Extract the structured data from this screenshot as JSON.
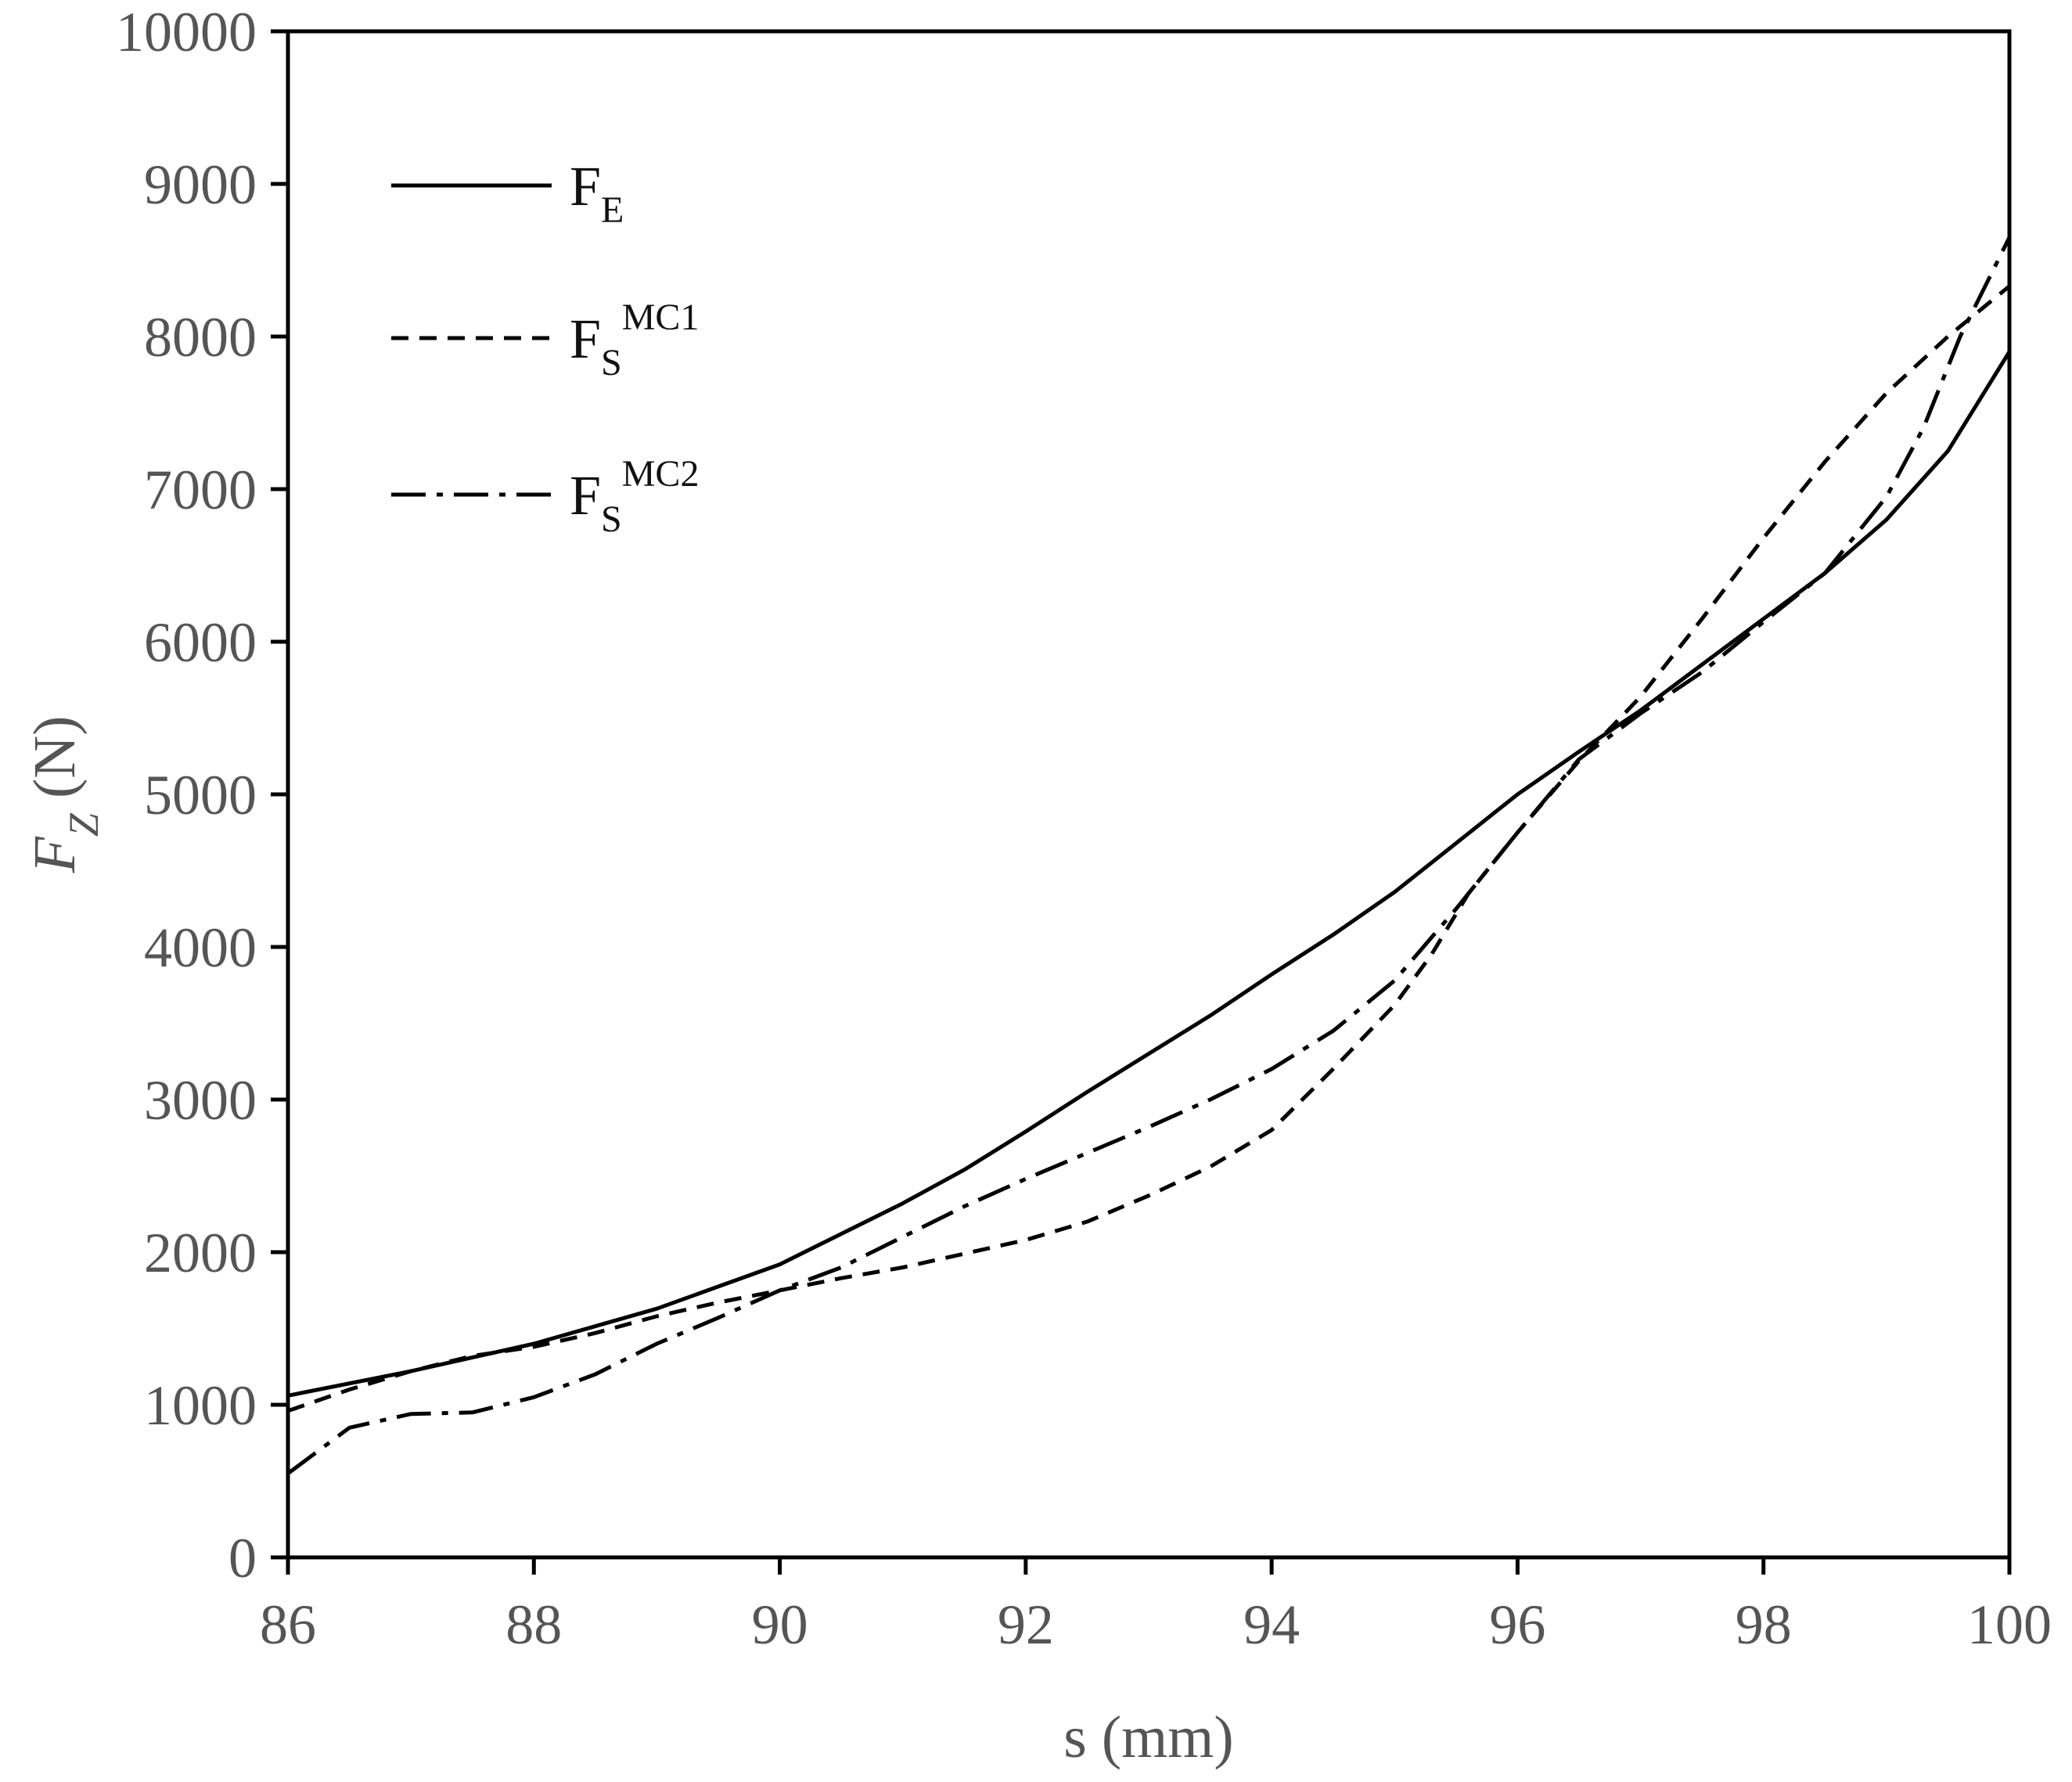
{
  "chart_data": {
    "type": "line",
    "xlabel": "s (mm)",
    "ylabel_main": "F",
    "ylabel_sub": "Z",
    "ylabel_unit": " (N)",
    "xlim": [
      86,
      100
    ],
    "ylim": [
      0,
      10000
    ],
    "x_ticks": [
      "86",
      "88",
      "90",
      "92",
      "94",
      "96",
      "98",
      "100"
    ],
    "y_ticks": [
      "0",
      "1000",
      "2000",
      "3000",
      "4000",
      "5000",
      "6000",
      "7000",
      "8000",
      "9000",
      "10000"
    ],
    "grid": false,
    "legend_position": "top-left",
    "series": [
      {
        "name": "F",
        "name_sub": "E",
        "name_sup": "",
        "style": "solid",
        "color": "#000000",
        "x": [
          86,
          87,
          88,
          89,
          90,
          90.5,
          91,
          91.5,
          92,
          92.5,
          93,
          93.5,
          94,
          94.5,
          95,
          95.5,
          96,
          96.5,
          97,
          97.5,
          98,
          98.5,
          99,
          99.5,
          100
        ],
        "y": [
          1060,
          1220,
          1400,
          1630,
          1920,
          2120,
          2320,
          2540,
          2790,
          3050,
          3300,
          3550,
          3820,
          4080,
          4360,
          4680,
          5000,
          5280,
          5550,
          5850,
          6150,
          6450,
          6800,
          7250,
          7900
        ]
      },
      {
        "name": "F",
        "name_sub": "S",
        "name_sup": "MC1",
        "style": "dashed",
        "color": "#000000",
        "x": [
          86,
          86.5,
          87,
          87.5,
          88,
          88.5,
          89,
          89.5,
          90,
          90.5,
          91,
          91.5,
          92,
          92.5,
          93,
          93.5,
          94,
          94.5,
          95,
          95.3,
          95.6,
          96,
          96.5,
          97,
          97.5,
          98,
          98.5,
          99,
          99.5,
          100
        ],
        "y": [
          960,
          1100,
          1220,
          1320,
          1380,
          1470,
          1580,
          1670,
          1750,
          1830,
          1900,
          1990,
          2080,
          2200,
          2370,
          2560,
          2800,
          3200,
          3620,
          3950,
          4350,
          4750,
          5220,
          5640,
          6150,
          6680,
          7180,
          7630,
          8000,
          8330
        ]
      },
      {
        "name": "F",
        "name_sub": "S",
        "name_sup": "MC2",
        "style": "dashdot",
        "color": "#000000",
        "x": [
          86,
          86.5,
          87,
          87.5,
          88,
          88.5,
          89,
          89.5,
          90,
          90.5,
          91,
          91.5,
          92,
          92.5,
          93,
          93.5,
          94,
          94.5,
          95,
          95.5,
          96,
          96.5,
          97,
          97.5,
          98,
          98.5,
          99,
          99.3,
          99.6,
          100
        ],
        "y": [
          550,
          850,
          940,
          950,
          1050,
          1200,
          1400,
          1570,
          1750,
          1900,
          2100,
          2300,
          2480,
          2650,
          2820,
          3000,
          3200,
          3450,
          3780,
          4250,
          4750,
          5230,
          5530,
          5800,
          6130,
          6450,
          6950,
          7400,
          8000,
          8650
        ]
      }
    ]
  }
}
